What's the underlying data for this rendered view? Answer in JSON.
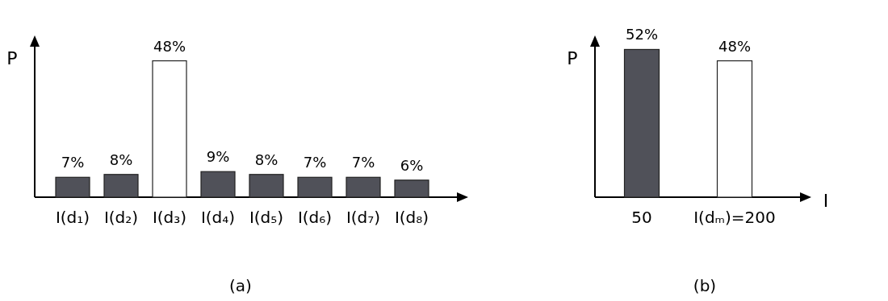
{
  "chart_data": [
    {
      "type": "bar",
      "title": "(a)",
      "ylabel": "P",
      "categories": [
        "I(d₁)",
        "I(d₂)",
        "I(d₃)",
        "I(d₄)",
        "I(d₅)",
        "I(d₆)",
        "I(d₇)",
        "I(d₈)"
      ],
      "values": [
        7,
        8,
        48,
        9,
        8,
        7,
        7,
        6
      ],
      "value_labels": [
        "7%",
        "8%",
        "48%",
        "9%",
        "8%",
        "7%",
        "7%",
        "6%"
      ],
      "colors": [
        "#505159",
        "#505159",
        "#ffffff",
        "#505159",
        "#505159",
        "#505159",
        "#505159",
        "#505159"
      ]
    },
    {
      "type": "bar",
      "title": "(b)",
      "ylabel": "P",
      "xlabel": "I",
      "categories": [
        "50",
        "I(dₘ)=200"
      ],
      "values": [
        52,
        48
      ],
      "value_labels": [
        "52%",
        "48%"
      ],
      "colors": [
        "#505159",
        "#ffffff"
      ]
    }
  ]
}
